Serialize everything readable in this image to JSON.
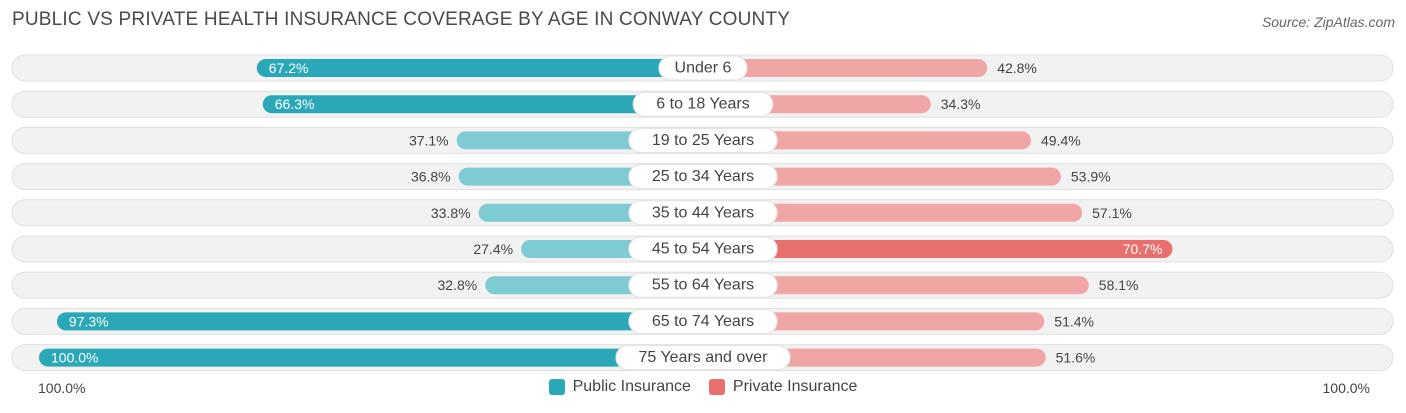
{
  "title": "PUBLIC VS PRIVATE HEALTH INSURANCE COVERAGE BY AGE IN CONWAY COUNTY",
  "source": "Source: ZipAtlas.com",
  "colors": {
    "public_strong": "#2aa8b8",
    "public_light": "#7fcbd4",
    "private_strong": "#e8706c",
    "private_light": "#f0a6a4",
    "track": "#f2f2f2",
    "track_border": "#e0e0e0"
  },
  "legend": {
    "public_label": "Public Insurance",
    "private_label": "Private Insurance"
  },
  "axis": {
    "left_label": "100.0%",
    "right_label": "100.0%"
  },
  "chart_data": {
    "type": "bar",
    "orientation": "horizontal-diverging",
    "title": "PUBLIC VS PRIVATE HEALTH INSURANCE COVERAGE BY AGE IN CONWAY COUNTY",
    "categories": [
      "Under 6",
      "6 to 18 Years",
      "19 to 25 Years",
      "25 to 34 Years",
      "35 to 44 Years",
      "45 to 54 Years",
      "55 to 64 Years",
      "65 to 74 Years",
      "75 Years and over"
    ],
    "series": [
      {
        "name": "Public Insurance",
        "values": [
          67.2,
          66.3,
          37.1,
          36.8,
          33.8,
          27.4,
          32.8,
          97.3,
          100.0
        ],
        "labels": [
          "67.2%",
          "66.3%",
          "37.1%",
          "36.8%",
          "33.8%",
          "27.4%",
          "32.8%",
          "97.3%",
          "100.0%"
        ]
      },
      {
        "name": "Private Insurance",
        "values": [
          42.8,
          34.3,
          49.4,
          53.9,
          57.1,
          70.7,
          58.1,
          51.4,
          51.6
        ],
        "labels": [
          "42.8%",
          "34.3%",
          "49.4%",
          "53.9%",
          "57.1%",
          "70.7%",
          "58.1%",
          "51.4%",
          "51.6%"
        ]
      }
    ],
    "xlim": [
      -100,
      100
    ],
    "legend_position": "bottom-center"
  }
}
